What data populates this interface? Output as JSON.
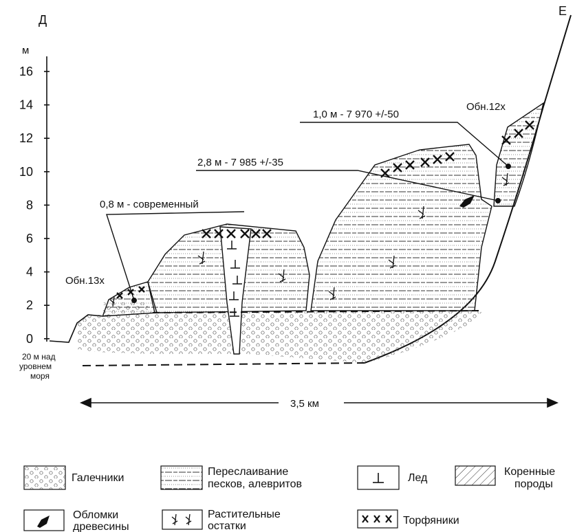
{
  "corner_left": "Д",
  "corner_right": "Е",
  "axis": {
    "unit": "м",
    "ticks": [
      "16",
      "14",
      "12",
      "10",
      "8",
      "6",
      "4",
      "2",
      "0"
    ],
    "base_note": [
      "20 м над",
      "уровнем",
      "моря"
    ]
  },
  "outcrops": {
    "left": "Обн.13х",
    "right": "Обн.12х"
  },
  "dates": {
    "a": "0,8 м - современный",
    "b": "2,8 м - 7 985 +/-35",
    "c": "1,0 м - 7 970 +/-50"
  },
  "scale": "3,5 км",
  "legend": {
    "pebbles": "Галечники",
    "interbed_1": "Переслаивание",
    "interbed_2": "песков, алевритов",
    "ice": "Лед",
    "bedrock_1": "Коренные",
    "bedrock_2": "породы",
    "wood_1": "Обломки",
    "wood_2": "древесины",
    "plants_1": "Растительные",
    "plants_2": "остатки",
    "peat": "Торфяники"
  }
}
